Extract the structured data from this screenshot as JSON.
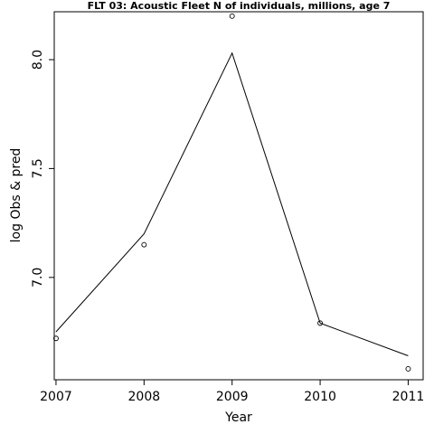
{
  "chart_data": {
    "type": "line",
    "title": "FLT 03: Acoustic Fleet  N of individuals, millions, age 7",
    "xlabel": "Year",
    "ylabel": "log Obs & pred",
    "x": [
      2007,
      2008,
      2009,
      2010,
      2011
    ],
    "x_tick_labels": [
      "2007",
      "2008",
      "2009",
      "2010",
      "2011"
    ],
    "y_ticks": [
      7.0,
      7.5,
      8.0
    ],
    "y_tick_labels": [
      "7.0",
      "7.5",
      "8.0"
    ],
    "xlim": [
      2006.98,
      2011.17
    ],
    "ylim": [
      6.53,
      8.22
    ],
    "grid": false,
    "series": [
      {
        "style": "points",
        "marker": "open-circle",
        "values": [
          6.72,
          7.15,
          8.2,
          6.79,
          6.58
        ]
      },
      {
        "style": "line",
        "values": [
          6.75,
          7.2,
          8.03,
          6.79,
          6.64
        ]
      }
    ]
  }
}
